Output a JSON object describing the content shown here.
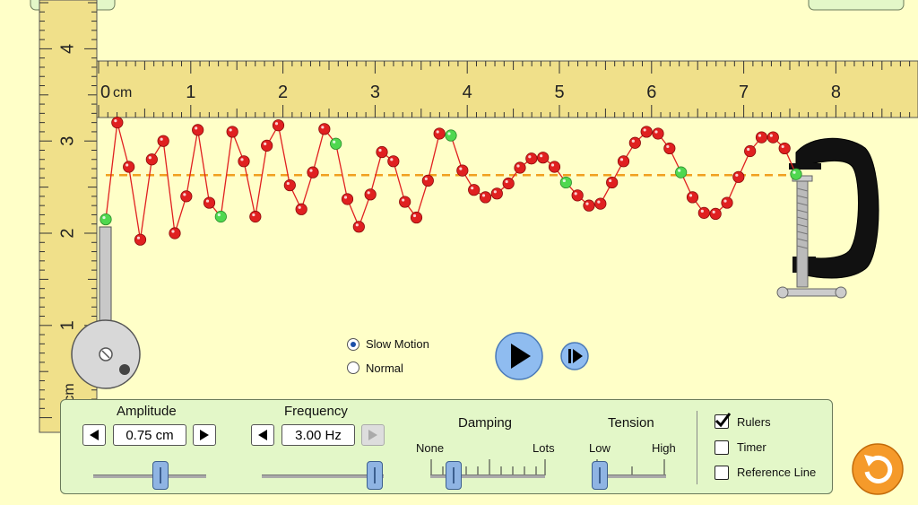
{
  "ruler": {
    "horizontal_unit": "cm",
    "horizontal_ticks": [
      "0",
      "1",
      "2",
      "3",
      "4",
      "5",
      "6",
      "7",
      "8"
    ],
    "vertical_ticks": [
      "4",
      "3",
      "2",
      "1"
    ],
    "vertical_unit": "cm"
  },
  "playback": {
    "slow_motion_label": "Slow Motion",
    "normal_label": "Normal",
    "selected": "slow_motion"
  },
  "controls": {
    "amplitude": {
      "label": "Amplitude",
      "value": "0.75 cm",
      "slider": 0.55
    },
    "frequency": {
      "label": "Frequency",
      "value": "3.00 Hz",
      "slider": 1.0
    },
    "damping": {
      "label": "Damping",
      "min_label": "None",
      "max_label": "Lots",
      "slider": 0.2
    },
    "tension": {
      "label": "Tension",
      "min_label": "Low",
      "max_label": "High",
      "slider": 0.1
    }
  },
  "options": {
    "rulers": {
      "label": "Rulers",
      "checked": true
    },
    "timer": {
      "label": "Timer",
      "checked": false
    },
    "reference_line": {
      "label": "Reference Line",
      "checked": false
    }
  },
  "colors": {
    "background": "#ffffc8",
    "ruler": "#f0e08a",
    "bead": "#e02020",
    "bead_marked": "#4fd84f",
    "reference_line": "#f0a020",
    "panel": "#e3f7c8",
    "play_button": "#8fbcf0",
    "reset_button": "#f59a2a"
  },
  "wave": {
    "beads_y_cm": [
      2.15,
      3.2,
      2.72,
      1.93,
      2.8,
      3.0,
      2.0,
      2.4,
      3.12,
      2.33,
      2.18,
      3.1,
      2.78,
      2.18,
      2.95,
      3.17,
      2.52,
      2.26,
      2.66,
      3.13,
      2.97,
      2.37,
      2.07,
      2.42,
      2.88,
      2.78,
      2.34,
      2.17,
      2.57,
      3.08,
      3.06,
      2.68,
      2.47,
      2.39,
      2.43,
      2.54,
      2.71,
      2.81,
      2.82,
      2.72,
      2.55,
      2.41,
      2.3,
      2.32,
      2.55,
      2.78,
      2.98,
      3.1,
      3.08,
      2.92,
      2.66,
      2.39,
      2.22,
      2.21,
      2.33,
      2.61,
      2.89,
      3.04,
      3.04,
      2.92,
      2.64
    ],
    "marked_indices": [
      0,
      10,
      20,
      30,
      40,
      50,
      60
    ],
    "reference_y_cm": 2.63
  }
}
